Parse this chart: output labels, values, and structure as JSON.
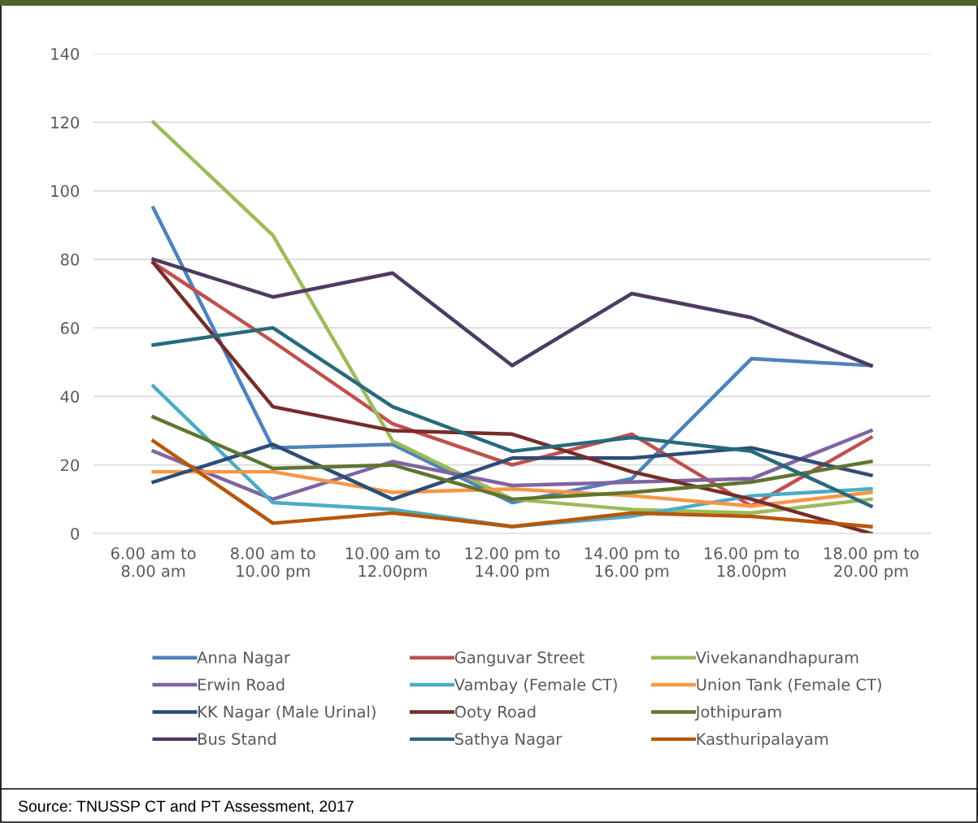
{
  "chart_data": {
    "type": "line",
    "categories": [
      "6.00 am to\n8.00 am",
      "8.00 am to\n10.00 pm",
      "10.00 am to\n12.00pm",
      "12.00 pm to\n14.00 pm",
      "14.00 pm to\n16.00 pm",
      "16.00 pm to\n18.00pm",
      "18.00 pm to\n20.00 pm"
    ],
    "series": [
      {
        "name": "Anna Nagar",
        "color": "#4f81bd",
        "values": [
          95,
          25,
          26,
          9,
          16,
          51,
          49
        ]
      },
      {
        "name": "Ganguvar Street",
        "color": "#c0504d",
        "values": [
          79,
          56,
          32,
          20,
          29,
          8,
          28
        ]
      },
      {
        "name": "Vivekanandhapuram",
        "color": "#9bbb59",
        "values": [
          120,
          87,
          27,
          10,
          7,
          6,
          10
        ]
      },
      {
        "name": "Erwin Road",
        "color": "#8064a2",
        "values": [
          24,
          10,
          21,
          14,
          15,
          16,
          30
        ]
      },
      {
        "name": "Vambay (Female CT)",
        "color": "#4bacc6",
        "values": [
          43,
          9,
          7,
          2,
          5,
          11,
          13
        ]
      },
      {
        "name": "Union Tank (Female CT)",
        "color": "#f79646",
        "values": [
          18,
          18,
          12,
          13,
          11,
          8,
          12
        ]
      },
      {
        "name": "KK Nagar (Male Urinal)",
        "color": "#2c4d75",
        "values": [
          15,
          26,
          10,
          22,
          22,
          25,
          17
        ]
      },
      {
        "name": "Ooty Road",
        "color": "#772c2a",
        "values": [
          79,
          37,
          30,
          29,
          18,
          10,
          0
        ]
      },
      {
        "name": "Jothipuram",
        "color": "#5f7530",
        "values": [
          34,
          19,
          20,
          10,
          12,
          15,
          21
        ]
      },
      {
        "name": "Bus Stand",
        "color": "#4d3b62",
        "values": [
          80,
          69,
          76,
          49,
          70,
          63,
          49
        ]
      },
      {
        "name": "Sathya Nagar",
        "color": "#276a7c",
        "values": [
          55,
          60,
          37,
          24,
          28,
          24,
          8
        ]
      },
      {
        "name": "Kasthuripalayam",
        "color": "#b65708",
        "values": [
          27,
          3,
          6,
          2,
          6,
          5,
          2
        ]
      }
    ],
    "ylim": [
      0,
      140
    ],
    "yticks": [
      0,
      20,
      40,
      60,
      80,
      100,
      120,
      140
    ],
    "grid": "y",
    "legend": "bottom",
    "marker": "none",
    "line_style": "solid",
    "annotations": [
      "Source: TNUSSP CT and PT Assessment, 2017"
    ]
  }
}
